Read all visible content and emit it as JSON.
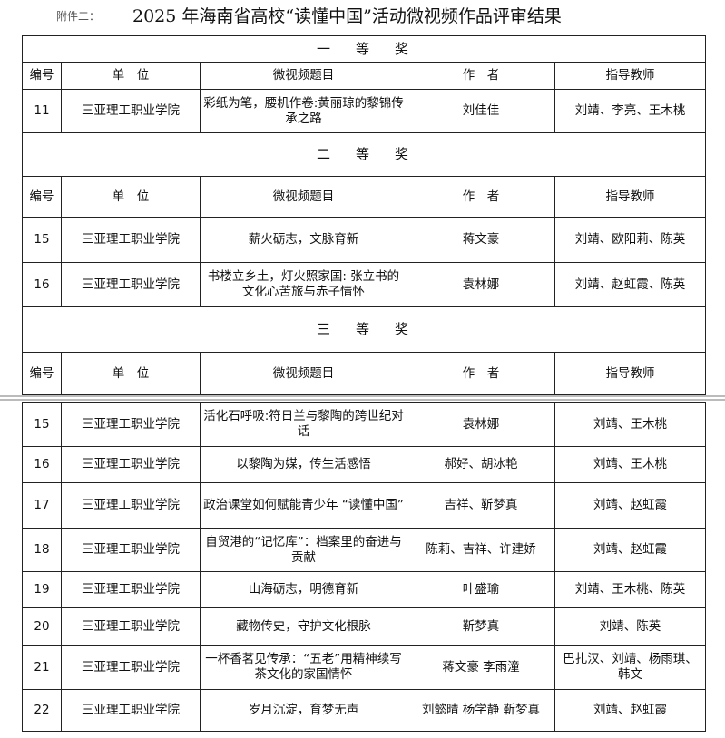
{
  "header": {
    "annex_label": "附件二：",
    "title": "2025 年海南省高校“读懂中国”活动微视频作品评审结果"
  },
  "columns": [
    "编号",
    "单　位",
    "微视频题目",
    "作　者",
    "指导教师"
  ],
  "sections": [
    {
      "prize": "一等奖",
      "rows": [
        {
          "no": "11",
          "unit": "三亚理工职业学院",
          "title": "彩纸为笔，腰机作卷:黄丽琼的黎锦传承之路",
          "author": "刘佳佳",
          "advisor": "刘靖、李亮、王木桃"
        }
      ]
    },
    {
      "prize": "二等奖",
      "rows": [
        {
          "no": "15",
          "unit": "三亚理工职业学院",
          "title": "薪火砺志，文脉育新",
          "author": "蒋文豪",
          "advisor": "刘靖、欧阳莉、陈英"
        },
        {
          "no": "16",
          "unit": "三亚理工职业学院",
          "title": "书楼立乡土，灯火照家国: 张立书的文化心苦旅与赤子情怀",
          "author": "袁林娜",
          "advisor": "刘靖、赵虹霞、陈英"
        }
      ]
    },
    {
      "prize": "三等奖",
      "rows": [
        {
          "no": "15",
          "unit": "三亚理工职业学院",
          "title": "活化石呼吸:符日兰与黎陶的跨世纪对话",
          "author": "袁林娜",
          "advisor": "刘靖、王木桃"
        },
        {
          "no": "16",
          "unit": "三亚理工职业学院",
          "title": "以黎陶为媒，传生活感悟",
          "author": "郝好、胡冰艳",
          "advisor": "刘靖、王木桃"
        },
        {
          "no": "17",
          "unit": "三亚理工职业学院",
          "title": "政治课堂如何赋能青少年 “读懂中国”",
          "author": "吉祥、靳梦真",
          "advisor": "刘靖、赵虹霞"
        },
        {
          "no": "18",
          "unit": "三亚理工职业学院",
          "title": "自贸港的“记忆库”：档案里的奋进与贡献",
          "author": "陈莉、吉祥、许建娇",
          "advisor": "刘靖、赵虹霞"
        },
        {
          "no": "19",
          "unit": "三亚理工职业学院",
          "title": "山海砺志，明德育新",
          "author": "叶盛瑜",
          "advisor": "刘靖、王木桃、陈英"
        },
        {
          "no": "20",
          "unit": "三亚理工职业学院",
          "title": "藏物传史，守护文化根脉",
          "author": "靳梦真",
          "advisor": "刘靖、陈英"
        },
        {
          "no": "21",
          "unit": "三亚理工职业学院",
          "title": "一杯香茗见传承：“五老”用精神续写茶文化的家国情怀",
          "author": "蒋文豪  李雨潼",
          "advisor": "巴扎汉、刘靖、杨雨琪、韩文"
        },
        {
          "no": "22",
          "unit": "三亚理工职业学院",
          "title": "岁月沉淀，育梦无声",
          "author": "刘懿晴  杨学静  靳梦真",
          "advisor": "刘靖、赵虹霞"
        }
      ]
    }
  ]
}
